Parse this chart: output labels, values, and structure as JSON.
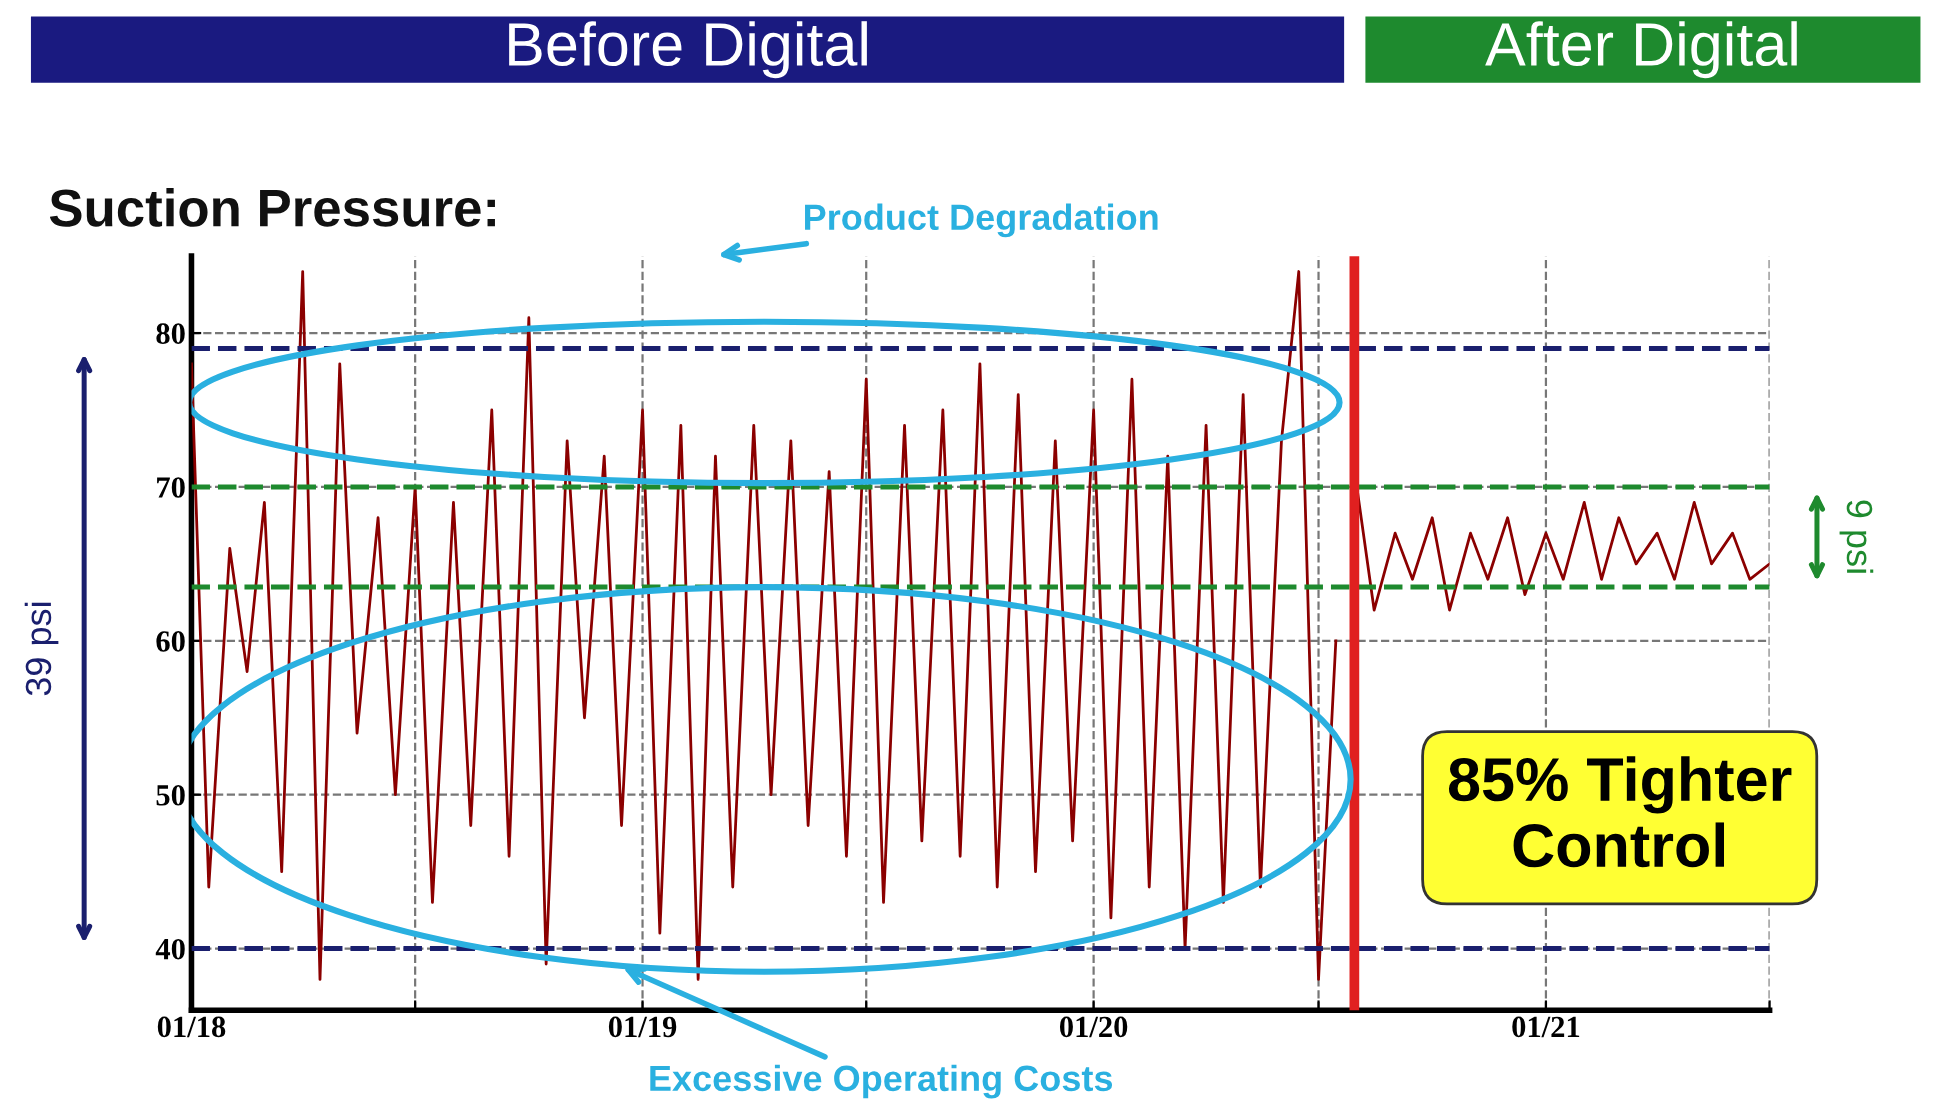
{
  "chart_data": {
    "type": "line",
    "title": "Suction Pressure:",
    "annotations": [
      "Before Digital",
      "After Digital",
      "Product Degradation",
      "Excessive Operating Costs",
      "39 psi",
      "9 psi",
      "85% Tighter Control"
    ],
    "series": [
      {
        "color": "#8b0000",
        "x": [
          "2018-01-01",
          "2018-01-15",
          "2018-02-01",
          "2018-02-15",
          "2018-03-01",
          "2018-03-15",
          "2018-04-01",
          "2018-04-15",
          "2018-05-01",
          "2018-05-15",
          "2018-06-01",
          "2018-06-15",
          "2018-07-01",
          "2018-07-15",
          "2018-08-01",
          "2018-08-15",
          "2018-09-01",
          "2018-09-15",
          "2018-10-01",
          "2018-10-15",
          "2018-11-01",
          "2018-11-15",
          "2018-12-01",
          "2018-12-15",
          "2019-01-01",
          "2019-01-15",
          "2019-02-01",
          "2019-02-15",
          "2019-03-01",
          "2019-03-15",
          "2019-04-01",
          "2019-04-15",
          "2019-05-01",
          "2019-05-15",
          "2019-06-01",
          "2019-06-15",
          "2019-07-01",
          "2019-07-15",
          "2019-08-01",
          "2019-08-15",
          "2019-09-01",
          "2019-09-15",
          "2019-10-01",
          "2019-10-15",
          "2019-11-01",
          "2019-11-15",
          "2019-12-01",
          "2019-12-15",
          "2020-01-01",
          "2020-01-15",
          "2020-02-01",
          "2020-02-15",
          "2020-03-01",
          "2020-03-15",
          "2020-04-01",
          "2020-04-15",
          "2020-05-01",
          "2020-05-15",
          "2020-06-01",
          "2020-06-15",
          "2020-07-01",
          "2020-07-15"
        ],
        "values": [
          78,
          44,
          66,
          58,
          69,
          45,
          84,
          38,
          78,
          54,
          68,
          50,
          70,
          43,
          69,
          48,
          75,
          46,
          81,
          39,
          73,
          55,
          72,
          48,
          75,
          41,
          74,
          38,
          72,
          44,
          74,
          50,
          73,
          48,
          71,
          46,
          77,
          43,
          74,
          47,
          75,
          46,
          78,
          44,
          76,
          45,
          73,
          47,
          75,
          42,
          77,
          44,
          72,
          40,
          74,
          43,
          76,
          44,
          73,
          84,
          38,
          60
        ]
      },
      {
        "color": "#8b0000",
        "x": [
          "2020-08-01",
          "2020-08-15",
          "2020-09-01",
          "2020-09-15",
          "2020-10-01",
          "2020-10-15",
          "2020-11-01",
          "2020-11-15",
          "2020-12-01",
          "2020-12-15",
          "2021-01-01",
          "2021-01-15",
          "2021-02-01",
          "2021-02-15",
          "2021-03-01",
          "2021-03-15",
          "2021-04-01",
          "2021-04-15",
          "2021-05-01",
          "2021-05-15",
          "2021-06-01",
          "2021-06-15",
          "2021-07-01"
        ],
        "values": [
          70,
          62,
          67,
          64,
          68,
          62,
          67,
          64,
          68,
          63,
          67,
          64,
          69,
          64,
          68,
          65,
          67,
          64,
          69,
          65,
          67,
          64,
          65
        ]
      }
    ],
    "xlim": [
      "2018-01-01",
      "2021-07-01"
    ],
    "xticks": [
      {
        "value": "2018-01-01",
        "label": "01/18"
      },
      {
        "value": "2018-07-01",
        "label": null
      },
      {
        "value": "2019-01-01",
        "label": "01/19"
      },
      {
        "value": "2019-07-01",
        "label": null
      },
      {
        "value": "2020-01-01",
        "label": "01/20"
      },
      {
        "value": "2020-07-01",
        "label": null
      },
      {
        "value": "2021-01-01",
        "label": "01/21"
      },
      {
        "value": "2021-07-01",
        "label": null
      }
    ],
    "ylim": [
      36,
      85
    ],
    "yticks": [
      40,
      50,
      60,
      70,
      80
    ],
    "grid": true,
    "line_style": "solid",
    "ref_lines": [
      {
        "axis": "y",
        "value": 79,
        "color": "#1a1f6e",
        "line_style": "dashed"
      },
      {
        "axis": "y",
        "value": 40,
        "color": "#1a1f6e",
        "line_style": "dashed"
      },
      {
        "axis": "y",
        "value": 70,
        "color": "#1e8a2e",
        "line_style": "dashed"
      },
      {
        "axis": "y",
        "value": 63.5,
        "color": "#1e8a2e",
        "line_style": "dashed"
      },
      {
        "axis": "x",
        "value": "2020-07-30",
        "color": "#e02020",
        "line_style": "solid"
      }
    ]
  }
}
